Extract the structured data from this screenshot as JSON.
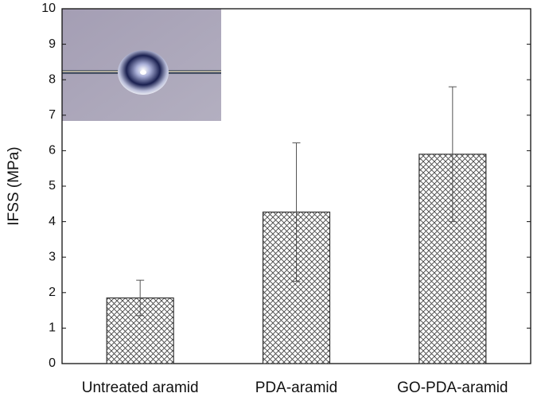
{
  "chart_data": {
    "type": "bar",
    "y_label": "IFSS (MPa)",
    "categories": [
      "Untreated aramid",
      "PDA-aramid",
      "GO-PDA-aramid"
    ],
    "values": [
      1.85,
      4.27,
      5.9
    ],
    "errors": [
      0.5,
      1.95,
      1.9
    ],
    "color": "#333333",
    "ylim": [
      0,
      10
    ],
    "yticks": [
      0,
      1,
      2,
      3,
      4,
      5,
      6,
      7,
      8,
      9,
      10
    ],
    "grid": false
  }
}
